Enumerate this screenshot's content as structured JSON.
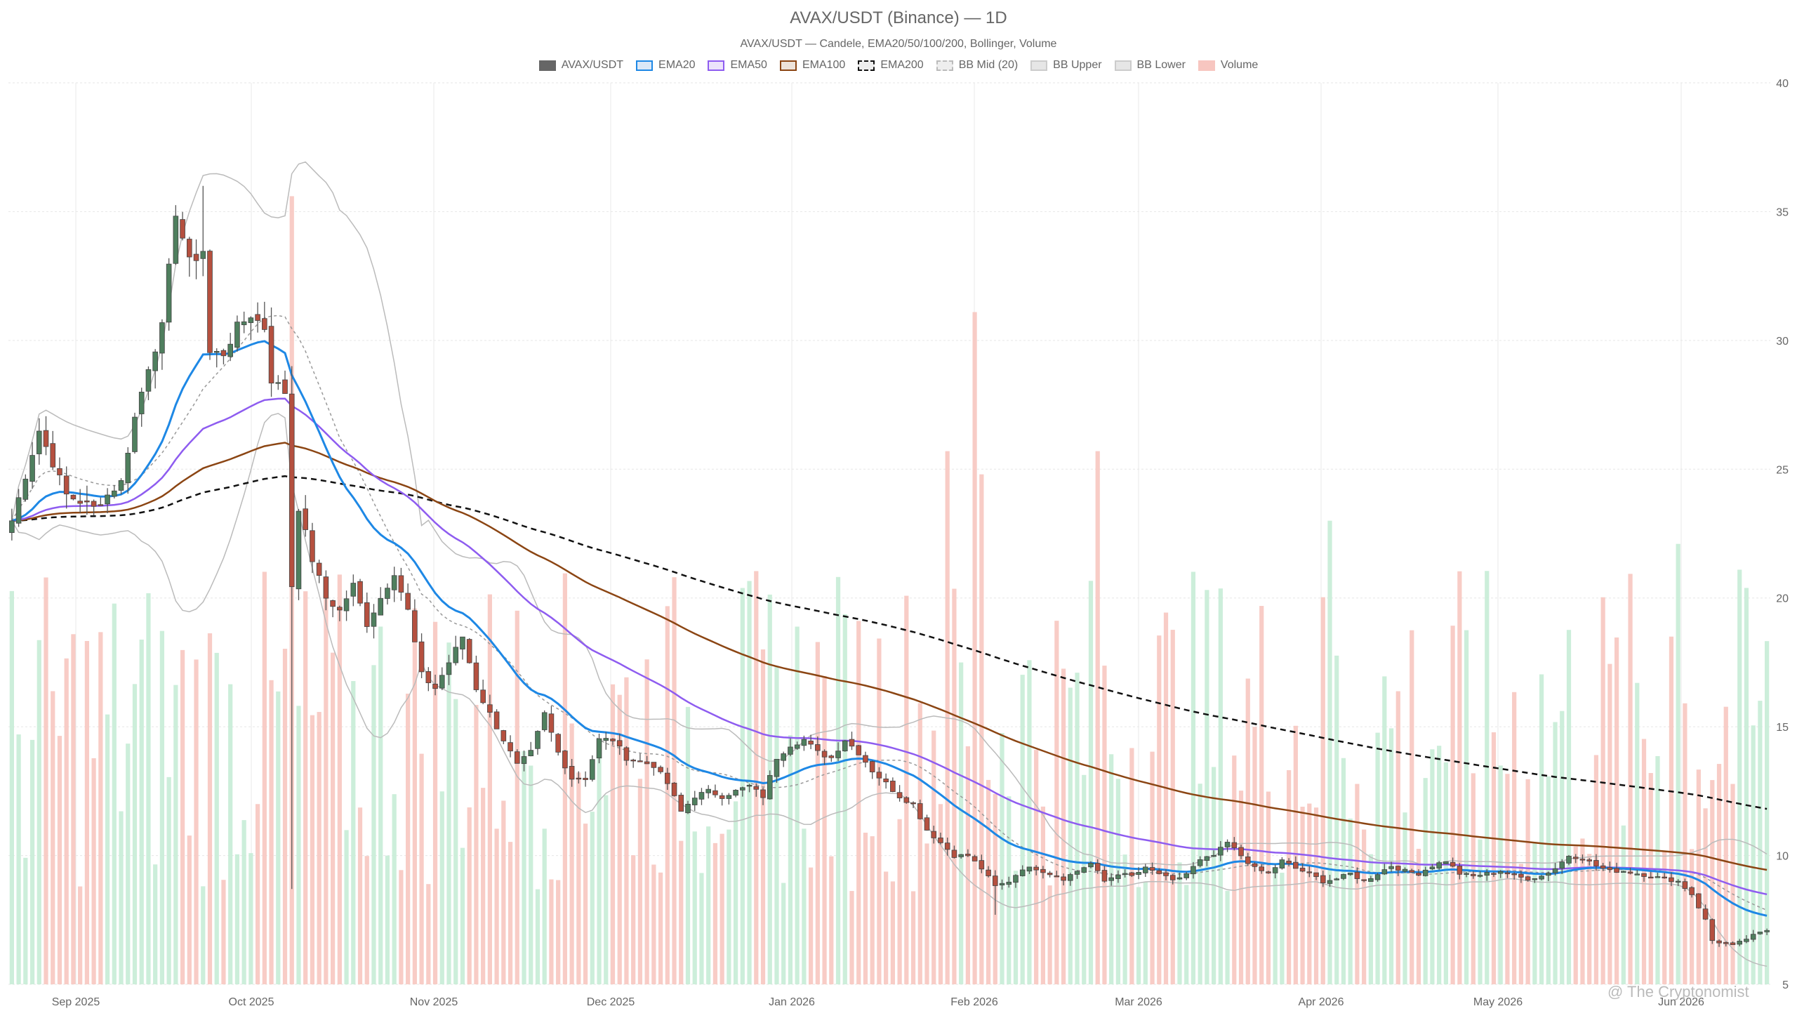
{
  "header": {
    "title": "AVAX/USDT (Binance) — 1D",
    "subtitle": "AVAX/USDT — Candele, EMA20/50/100/200, Bollinger, Volume"
  },
  "legend": [
    {
      "label": "AVAX/USDT",
      "style": "solid",
      "fill": "#666666",
      "border": "#666666"
    },
    {
      "label": "EMA20",
      "style": "solid",
      "fill": "#dbe8f7",
      "border": "#1e88e5"
    },
    {
      "label": "EMA50",
      "style": "solid",
      "fill": "#ece3fb",
      "border": "#8e5cf0"
    },
    {
      "label": "EMA100",
      "style": "solid",
      "fill": "#eee3da",
      "border": "#8b4513"
    },
    {
      "label": "EMA200",
      "style": "dashed",
      "fill": "#eeeeee",
      "border": "#111111"
    },
    {
      "label": "BB Mid (20)",
      "style": "dashed",
      "fill": "#eeeeee",
      "border": "#bbbbbb"
    },
    {
      "label": "BB Upper",
      "style": "solid",
      "fill": "#e6e6e6",
      "border": "#cccccc"
    },
    {
      "label": "BB Lower",
      "style": "solid",
      "fill": "#e6e6e6",
      "border": "#cccccc"
    },
    {
      "label": "Volume",
      "style": "solid",
      "fill": "#f7c6c0",
      "border": "#f7c6c0"
    }
  ],
  "watermark": "@ The Cryptonomist",
  "chart_data": {
    "type": "candlestick",
    "y_axis": {
      "position": "right",
      "min": 5,
      "max": 40,
      "ticks": [
        5,
        10,
        15,
        20,
        25,
        30,
        35,
        40
      ]
    },
    "x_axis": {
      "ticks": [
        "Sep 2025",
        "Oct 2025",
        "Nov 2025",
        "Dec 2025",
        "Jan 2026",
        "Feb 2026",
        "Mar 2026",
        "Apr 2026",
        "May 2026",
        "Jun 2026"
      ]
    },
    "grid": true,
    "colors": {
      "up": "#4f7f5e",
      "down": "#b5503f",
      "vol_up": "#c6ecd6",
      "vol_down": "#f7c6c0",
      "ema20": "#1e88e5",
      "ema50": "#8e5cf0",
      "ema100": "#8b4513",
      "ema200": "#111111",
      "bb": "#bbbbbb"
    },
    "close_anchors": [
      [
        0,
        23.0
      ],
      [
        4,
        26.5
      ],
      [
        8,
        24.0
      ],
      [
        12,
        23.5
      ],
      [
        16,
        24.5
      ],
      [
        18,
        27.0
      ],
      [
        20,
        29.0
      ],
      [
        22,
        30.5
      ],
      [
        24,
        35.0
      ],
      [
        26,
        33.0
      ],
      [
        28,
        33.5
      ],
      [
        29,
        29.5
      ],
      [
        31,
        29.5
      ],
      [
        33,
        30.5
      ],
      [
        35,
        31.0
      ],
      [
        37,
        30.5
      ],
      [
        38,
        28.5
      ],
      [
        40,
        28.0
      ],
      [
        41,
        20.5
      ],
      [
        42,
        23.5
      ],
      [
        44,
        21.5
      ],
      [
        46,
        20.0
      ],
      [
        48,
        19.5
      ],
      [
        50,
        20.5
      ],
      [
        52,
        19.0
      ],
      [
        56,
        21.0
      ],
      [
        58,
        19.5
      ],
      [
        60,
        17.0
      ],
      [
        62,
        16.5
      ],
      [
        64,
        17.5
      ],
      [
        66,
        18.5
      ],
      [
        68,
        16.5
      ],
      [
        70,
        15.5
      ],
      [
        72,
        14.5
      ],
      [
        74,
        13.5
      ],
      [
        76,
        14.0
      ],
      [
        78,
        15.5
      ],
      [
        80,
        14.0
      ],
      [
        82,
        13.0
      ],
      [
        84,
        13.0
      ],
      [
        86,
        14.5
      ],
      [
        88,
        14.5
      ],
      [
        90,
        13.8
      ],
      [
        94,
        13.5
      ],
      [
        96,
        12.8
      ],
      [
        98,
        11.7
      ],
      [
        100,
        12.3
      ],
      [
        102,
        12.5
      ],
      [
        104,
        12.3
      ],
      [
        106,
        12.5
      ],
      [
        108,
        12.7
      ],
      [
        110,
        12.3
      ],
      [
        112,
        13.8
      ],
      [
        114,
        14.3
      ],
      [
        116,
        14.5
      ],
      [
        118,
        14.0
      ],
      [
        120,
        13.8
      ],
      [
        122,
        14.5
      ],
      [
        124,
        14.0
      ],
      [
        126,
        13.3
      ],
      [
        128,
        12.8
      ],
      [
        130,
        12.3
      ],
      [
        132,
        12.0
      ],
      [
        134,
        11.0
      ],
      [
        136,
        10.5
      ],
      [
        138,
        10.0
      ],
      [
        140,
        10.0
      ],
      [
        142,
        9.5
      ],
      [
        144,
        8.8
      ],
      [
        146,
        9.0
      ],
      [
        148,
        9.5
      ],
      [
        150,
        9.5
      ],
      [
        152,
        9.3
      ],
      [
        154,
        9.1
      ],
      [
        156,
        9.4
      ],
      [
        158,
        9.7
      ],
      [
        160,
        9.0
      ],
      [
        162,
        9.3
      ],
      [
        164,
        9.2
      ],
      [
        166,
        9.5
      ],
      [
        168,
        9.3
      ],
      [
        170,
        9.0
      ],
      [
        172,
        9.3
      ],
      [
        174,
        9.8
      ],
      [
        176,
        10.0
      ],
      [
        178,
        10.5
      ],
      [
        180,
        10.0
      ],
      [
        182,
        9.5
      ],
      [
        184,
        9.3
      ],
      [
        186,
        9.8
      ],
      [
        188,
        9.5
      ],
      [
        190,
        9.3
      ],
      [
        192,
        9.0
      ],
      [
        194,
        9.1
      ],
      [
        196,
        9.3
      ],
      [
        198,
        9.0
      ],
      [
        200,
        9.3
      ],
      [
        202,
        9.6
      ],
      [
        204,
        9.4
      ],
      [
        206,
        9.3
      ],
      [
        208,
        9.6
      ],
      [
        210,
        9.8
      ],
      [
        212,
        9.3
      ],
      [
        214,
        9.2
      ],
      [
        216,
        9.3
      ],
      [
        218,
        9.4
      ],
      [
        220,
        9.2
      ],
      [
        222,
        9.1
      ],
      [
        224,
        9.2
      ],
      [
        226,
        9.5
      ],
      [
        228,
        10.0
      ],
      [
        230,
        9.9
      ],
      [
        232,
        9.6
      ],
      [
        234,
        9.4
      ],
      [
        236,
        9.4
      ],
      [
        238,
        9.3
      ],
      [
        240,
        9.2
      ],
      [
        242,
        9.1
      ],
      [
        244,
        9.0
      ],
      [
        246,
        8.5
      ],
      [
        248,
        7.5
      ],
      [
        249,
        6.7
      ],
      [
        252,
        6.5
      ],
      [
        255,
        6.9
      ],
      [
        257,
        7.1
      ]
    ],
    "volume_scale": {
      "min": 0,
      "max": 35
    }
  }
}
